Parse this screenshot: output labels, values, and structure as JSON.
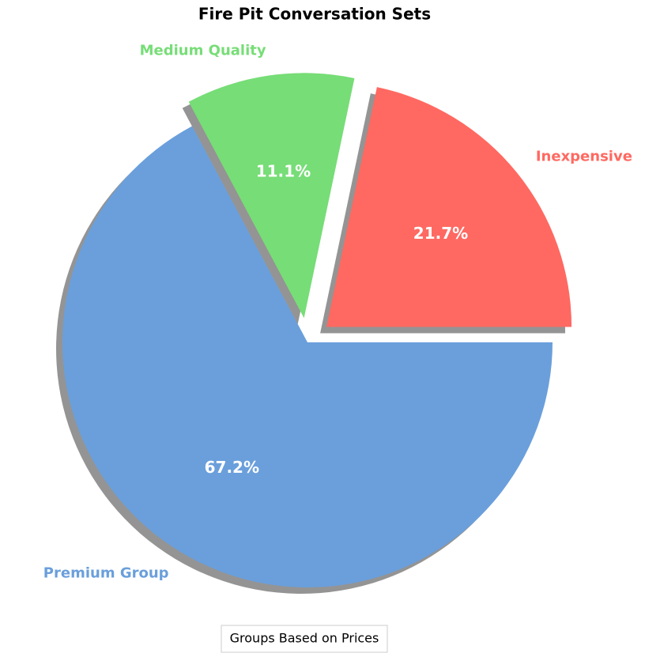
{
  "chart_data": {
    "type": "pie",
    "title": "Fire Pit Conversation Sets",
    "categories": [
      "Inexpensive",
      "Medium Quality",
      "Premium Group"
    ],
    "values": [
      21.7,
      11.1,
      67.2
    ],
    "value_labels": [
      "21.7%",
      "11.1%",
      "67.2%"
    ],
    "colors": [
      "#ff6961",
      "#77dd77",
      "#6a9fdb"
    ],
    "explode": [
      0.1,
      0.1,
      0
    ],
    "shadow": true,
    "legend_title": "Groups Based on Prices"
  }
}
